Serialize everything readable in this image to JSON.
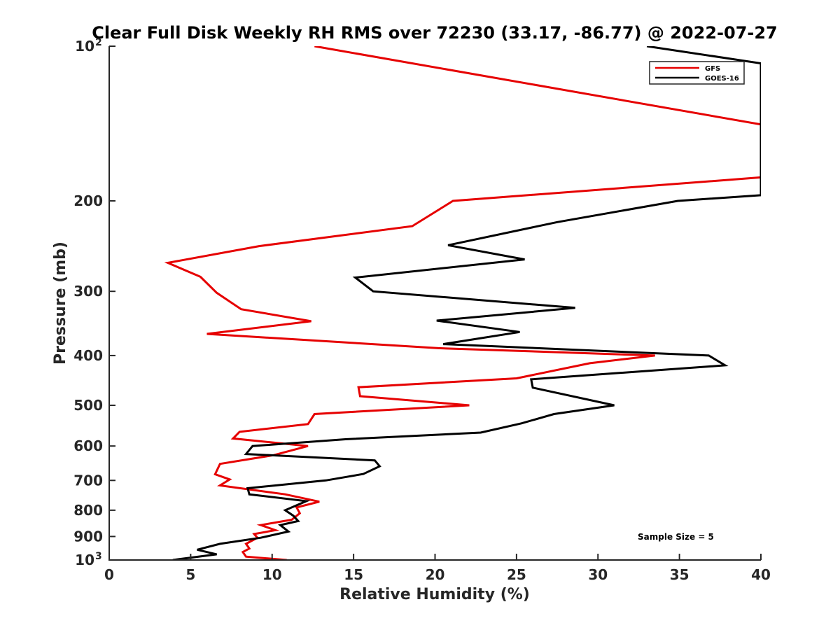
{
  "chart_data": {
    "type": "line",
    "title": "Clear Full Disk Weekly RH RMS over 72230 (33.17, -86.77) @ 2022-07-27",
    "xlabel": "Relative Humidity (%)",
    "ylabel": "Pressure (mb)",
    "xlim": [
      0,
      40
    ],
    "ylim": [
      100,
      1000
    ],
    "yscale": "log",
    "y_reversed": true,
    "grid": false,
    "legend_position": "top-right",
    "x_ticks": [
      0,
      5,
      10,
      15,
      20,
      25,
      30,
      35,
      40
    ],
    "x_tick_labels": [
      "0",
      "5",
      "10",
      "15",
      "20",
      "25",
      "30",
      "35",
      "40"
    ],
    "y_ticks": [
      100,
      200,
      300,
      400,
      500,
      600,
      700,
      800,
      900,
      1000
    ],
    "y_tick_labels": [
      {
        "base": "10",
        "exp": "2"
      },
      {
        "base": "200",
        "exp": ""
      },
      {
        "base": "300",
        "exp": ""
      },
      {
        "base": "400",
        "exp": ""
      },
      {
        "base": "500",
        "exp": ""
      },
      {
        "base": "600",
        "exp": ""
      },
      {
        "base": "700",
        "exp": ""
      },
      {
        "base": "800",
        "exp": ""
      },
      {
        "base": "900",
        "exp": ""
      },
      {
        "base": "10",
        "exp": "3"
      }
    ],
    "series": [
      {
        "name": "GFS",
        "color": "#e60000",
        "points": [
          [
            12.6,
            100
          ],
          [
            40.0,
            142
          ],
          [
            40.0,
            180
          ],
          [
            21.1,
            200
          ],
          [
            18.6,
            224
          ],
          [
            9.2,
            245
          ],
          [
            3.6,
            264
          ],
          [
            5.6,
            281
          ],
          [
            6.6,
            302
          ],
          [
            8.1,
            325
          ],
          [
            12.4,
            343
          ],
          [
            6.0,
            363
          ],
          [
            20.2,
            387
          ],
          [
            33.5,
            400
          ],
          [
            29.5,
            414
          ],
          [
            25.0,
            443
          ],
          [
            15.3,
            461
          ],
          [
            15.4,
            480
          ],
          [
            22.1,
            500
          ],
          [
            12.6,
            520
          ],
          [
            12.2,
            544
          ],
          [
            8.0,
            563
          ],
          [
            7.6,
            580
          ],
          [
            12.2,
            600
          ],
          [
            10.1,
            625
          ],
          [
            6.8,
            650
          ],
          [
            6.5,
            681
          ],
          [
            7.4,
            697
          ],
          [
            6.8,
            716
          ],
          [
            10.8,
            745
          ],
          [
            12.9,
            770
          ],
          [
            11.5,
            790
          ],
          [
            11.7,
            811
          ],
          [
            11.2,
            835
          ],
          [
            9.3,
            855
          ],
          [
            10.2,
            875
          ],
          [
            8.9,
            890
          ],
          [
            9.1,
            905
          ],
          [
            8.4,
            930
          ],
          [
            8.6,
            950
          ],
          [
            8.2,
            965
          ],
          [
            8.4,
            985
          ],
          [
            10.9,
            1000
          ]
        ]
      },
      {
        "name": "GOES-16",
        "color": "#000000",
        "points": [
          [
            33.0,
            100
          ],
          [
            40.0,
            108
          ],
          [
            40.0,
            195
          ],
          [
            34.9,
            200
          ],
          [
            27.5,
            220
          ],
          [
            20.8,
            244
          ],
          [
            25.5,
            260
          ],
          [
            15.1,
            282
          ],
          [
            16.2,
            300
          ],
          [
            28.6,
            323
          ],
          [
            20.1,
            342
          ],
          [
            25.2,
            360
          ],
          [
            20.5,
            380
          ],
          [
            36.8,
            400
          ],
          [
            37.8,
            418
          ],
          [
            25.9,
            445
          ],
          [
            26.0,
            462
          ],
          [
            31.0,
            500
          ],
          [
            27.3,
            520
          ],
          [
            25.3,
            542
          ],
          [
            22.8,
            565
          ],
          [
            14.5,
            582
          ],
          [
            8.8,
            600
          ],
          [
            8.4,
            622
          ],
          [
            16.3,
            640
          ],
          [
            16.6,
            657
          ],
          [
            15.6,
            680
          ],
          [
            13.3,
            700
          ],
          [
            8.5,
            725
          ],
          [
            8.6,
            745
          ],
          [
            12.1,
            768
          ],
          [
            10.8,
            800
          ],
          [
            11.3,
            820
          ],
          [
            11.6,
            840
          ],
          [
            10.5,
            855
          ],
          [
            11.0,
            880
          ],
          [
            9.3,
            905
          ],
          [
            6.8,
            930
          ],
          [
            5.4,
            955
          ],
          [
            6.6,
            975
          ],
          [
            3.9,
            1000
          ]
        ]
      }
    ],
    "legend": [
      "GFS",
      "GOES-16"
    ],
    "annotations": [
      "Sample Size = 5"
    ]
  }
}
